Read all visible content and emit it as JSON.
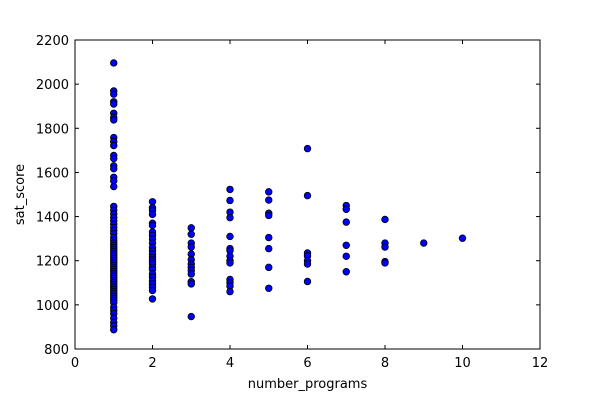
{
  "chart_data": {
    "type": "scatter",
    "title": "",
    "xlabel": "number_programs",
    "ylabel": "sat_score",
    "xlim": [
      0,
      12
    ],
    "ylim": [
      800,
      2200
    ],
    "x_ticks": [
      0,
      2,
      4,
      6,
      8,
      10,
      12
    ],
    "y_ticks": [
      800,
      1000,
      1200,
      1400,
      1600,
      1800,
      2000,
      2200
    ],
    "grid": false,
    "legend": "none",
    "marker_color": "#0000ff",
    "marker_edge_color": "#000000",
    "series": [
      {
        "points": [
          [
            1,
            2096
          ],
          [
            1,
            1969
          ],
          [
            1,
            1955
          ],
          [
            1,
            1920
          ],
          [
            1,
            1910
          ],
          [
            1,
            1868
          ],
          [
            1,
            1849
          ],
          [
            1,
            1838
          ],
          [
            1,
            1758
          ],
          [
            1,
            1740
          ],
          [
            1,
            1722
          ],
          [
            1,
            1677
          ],
          [
            1,
            1663
          ],
          [
            1,
            1630
          ],
          [
            1,
            1617
          ],
          [
            1,
            1578
          ],
          [
            1,
            1562
          ],
          [
            1,
            1536
          ],
          [
            1,
            1446
          ],
          [
            1,
            1429
          ],
          [
            1,
            1412
          ],
          [
            1,
            1396
          ],
          [
            1,
            1381
          ],
          [
            1,
            1365
          ],
          [
            1,
            1350
          ],
          [
            1,
            1336
          ],
          [
            1,
            1322
          ],
          [
            1,
            1305
          ],
          [
            1,
            1292
          ],
          [
            1,
            1280
          ],
          [
            1,
            1270
          ],
          [
            1,
            1260
          ],
          [
            1,
            1250
          ],
          [
            1,
            1240
          ],
          [
            1,
            1230
          ],
          [
            1,
            1220
          ],
          [
            1,
            1210
          ],
          [
            1,
            1200
          ],
          [
            1,
            1190
          ],
          [
            1,
            1180
          ],
          [
            1,
            1170
          ],
          [
            1,
            1160
          ],
          [
            1,
            1150
          ],
          [
            1,
            1140
          ],
          [
            1,
            1130
          ],
          [
            1,
            1120
          ],
          [
            1,
            1110
          ],
          [
            1,
            1100
          ],
          [
            1,
            1090
          ],
          [
            1,
            1080
          ],
          [
            1,
            1070
          ],
          [
            1,
            1060
          ],
          [
            1,
            1050
          ],
          [
            1,
            1040
          ],
          [
            1,
            1030
          ],
          [
            1,
            1020
          ],
          [
            1,
            1010
          ],
          [
            1,
            990
          ],
          [
            1,
            975
          ],
          [
            1,
            960
          ],
          [
            1,
            940
          ],
          [
            1,
            920
          ],
          [
            1,
            905
          ],
          [
            1,
            887
          ],
          [
            2,
            1467
          ],
          [
            2,
            1440
          ],
          [
            2,
            1428
          ],
          [
            2,
            1410
          ],
          [
            2,
            1370
          ],
          [
            2,
            1360
          ],
          [
            2,
            1330
          ],
          [
            2,
            1315
          ],
          [
            2,
            1298
          ],
          [
            2,
            1280
          ],
          [
            2,
            1260
          ],
          [
            2,
            1245
          ],
          [
            2,
            1230
          ],
          [
            2,
            1215
          ],
          [
            2,
            1205
          ],
          [
            2,
            1195
          ],
          [
            2,
            1185
          ],
          [
            2,
            1170
          ],
          [
            2,
            1160
          ],
          [
            2,
            1140
          ],
          [
            2,
            1125
          ],
          [
            2,
            1110
          ],
          [
            2,
            1095
          ],
          [
            2,
            1080
          ],
          [
            2,
            1065
          ],
          [
            2,
            1027
          ],
          [
            3,
            1349
          ],
          [
            3,
            1320
          ],
          [
            3,
            1280
          ],
          [
            3,
            1262
          ],
          [
            3,
            1230
          ],
          [
            3,
            1205
          ],
          [
            3,
            1185
          ],
          [
            3,
            1170
          ],
          [
            3,
            1155
          ],
          [
            3,
            1140
          ],
          [
            3,
            1105
          ],
          [
            3,
            1095
          ],
          [
            3,
            947
          ],
          [
            4,
            1523
          ],
          [
            4,
            1473
          ],
          [
            4,
            1420
          ],
          [
            4,
            1395
          ],
          [
            4,
            1310
          ],
          [
            4,
            1255
          ],
          [
            4,
            1245
          ],
          [
            4,
            1220
          ],
          [
            4,
            1200
          ],
          [
            4,
            1190
          ],
          [
            4,
            1115
          ],
          [
            4,
            1100
          ],
          [
            4,
            1085
          ],
          [
            4,
            1060
          ],
          [
            5,
            1512
          ],
          [
            5,
            1475
          ],
          [
            5,
            1415
          ],
          [
            5,
            1405
          ],
          [
            5,
            1305
          ],
          [
            5,
            1255
          ],
          [
            5,
            1170
          ],
          [
            5,
            1075
          ],
          [
            6,
            1708
          ],
          [
            6,
            1495
          ],
          [
            6,
            1235
          ],
          [
            6,
            1222
          ],
          [
            6,
            1200
          ],
          [
            6,
            1185
          ],
          [
            6,
            1106
          ],
          [
            7,
            1450
          ],
          [
            7,
            1433
          ],
          [
            7,
            1375
          ],
          [
            7,
            1270
          ],
          [
            7,
            1220
          ],
          [
            7,
            1150
          ],
          [
            8,
            1387
          ],
          [
            8,
            1280
          ],
          [
            8,
            1262
          ],
          [
            8,
            1196
          ],
          [
            8,
            1190
          ],
          [
            9,
            1280
          ],
          [
            10,
            1302
          ]
        ]
      }
    ]
  }
}
